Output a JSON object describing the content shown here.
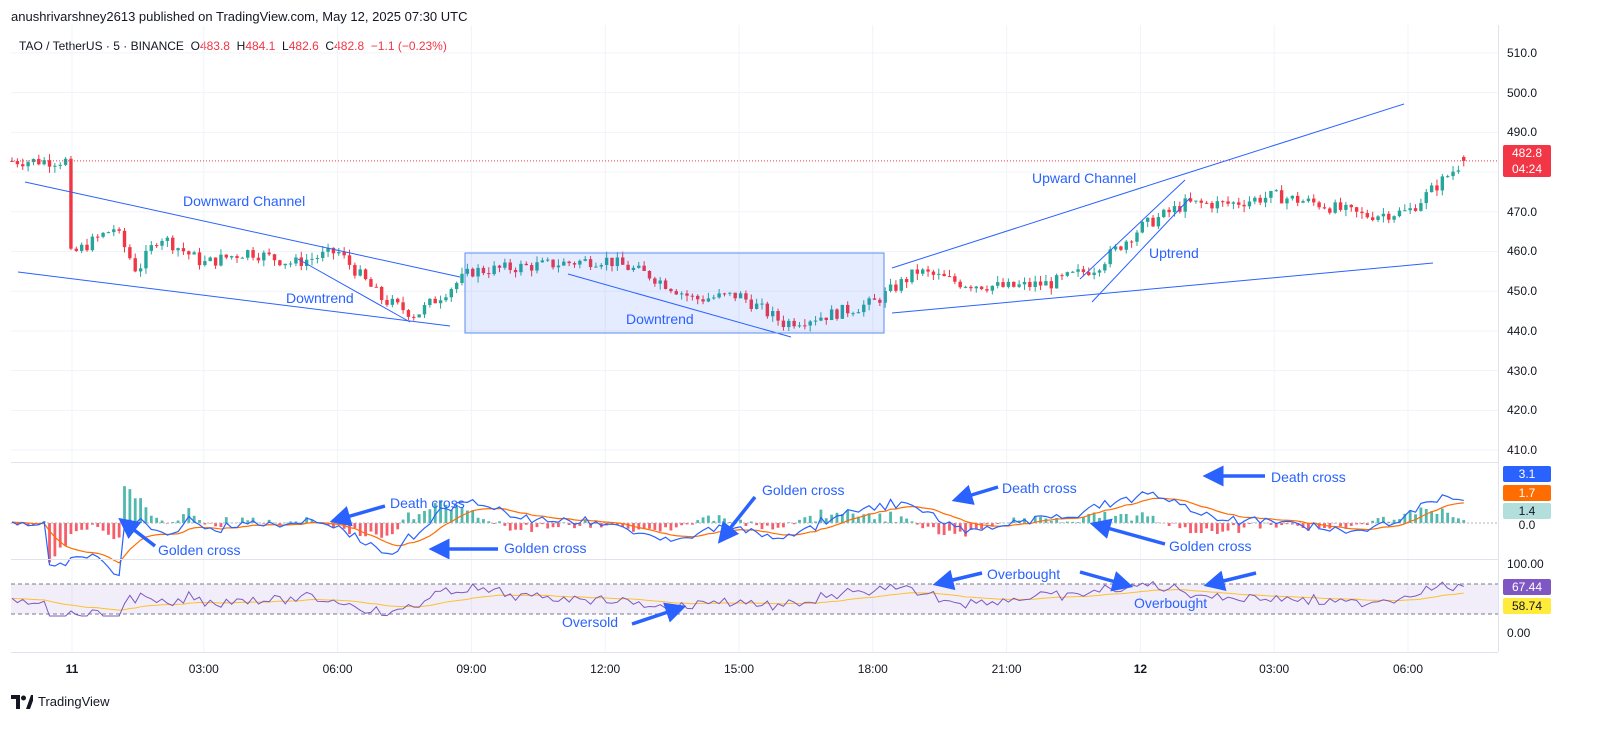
{
  "header": {
    "publisher_line": "anushrivarshney2613 published on TradingView.com, May 12, 2025 07:30 UTC"
  },
  "symbol": {
    "name": "TAO / TetherUS · 5 · BINANCE",
    "o_label": "O",
    "o_value": "483.8",
    "h_label": "H",
    "h_value": "484.1",
    "l_label": "L",
    "l_value": "482.6",
    "c_label": "C",
    "c_value": "482.8",
    "change": "−1.1 (−0.23%)"
  },
  "price_tag": {
    "value": "482.8",
    "timer": "04:24",
    "color": "#f23645"
  },
  "macd_tags": [
    {
      "value": "3.1",
      "color": "#2962ff",
      "text": "#ffffff"
    },
    {
      "value": "1.7",
      "color": "#ff6d00",
      "text": "#ffffff"
    },
    {
      "value": "1.4",
      "color": "#b2dfdb",
      "text": "#131722"
    },
    {
      "value": "0.0",
      "color": "",
      "text": "#131722"
    }
  ],
  "rsi_tags": [
    {
      "value": "67.44",
      "color": "#7e57c2",
      "text": "#ffffff"
    },
    {
      "value": "58.74",
      "color": "#ffeb3b",
      "text": "#131722"
    }
  ],
  "rsi_axis": [
    "100.00",
    "0.00"
  ],
  "footer": {
    "brand": "TradingView"
  },
  "annotations": {
    "downward_channel": "Downward Channel",
    "downtrend_1": "Downtrend",
    "downtrend_2": "Downtrend",
    "upward_channel": "Upward Channel",
    "uptrend": "Uptrend",
    "death_cross_1": "Death cross",
    "death_cross_2": "Death cross",
    "death_cross_3": "Death cross",
    "golden_cross_1": "Golden cross",
    "golden_cross_2": "Golden cross",
    "golden_cross_3": "Golden cross",
    "golden_cross_4": "Golden cross",
    "overbought_1": "Overbought",
    "overbought_2": "Overbought",
    "oversold": "Oversold"
  },
  "colors": {
    "up": "#26a69a",
    "down": "#f23645",
    "line": "#2962ff",
    "signal": "#ff6d00",
    "rsi": "#7e57c2",
    "rsi_ma": "#ffeb3b"
  },
  "chart_data": {
    "type": "candlestick",
    "title": "TAO / TetherUS · 5 · BINANCE",
    "y_ticks": [
      510,
      500,
      490,
      480,
      470,
      460,
      450,
      440,
      430,
      420,
      410
    ],
    "ylim": [
      408,
      513
    ],
    "x_ticks": [
      "11",
      "03:00",
      "06:00",
      "09:00",
      "12:00",
      "15:00",
      "18:00",
      "21:00",
      "12",
      "03:00",
      "06:00"
    ],
    "last_price": 482.8,
    "price_path": [
      {
        "t": "00:00",
        "p": 459
      },
      {
        "t": "01:00",
        "p": 466
      },
      {
        "t": "01:30",
        "p": 455
      },
      {
        "t": "02:00",
        "p": 464
      },
      {
        "t": "03:00",
        "p": 457
      },
      {
        "t": "04:00",
        "p": 460
      },
      {
        "t": "05:00",
        "p": 457
      },
      {
        "t": "06:00",
        "p": 460
      },
      {
        "t": "07:00",
        "p": 448
      },
      {
        "t": "07:45",
        "p": 444
      },
      {
        "t": "09:00",
        "p": 455
      },
      {
        "t": "10:00",
        "p": 456
      },
      {
        "t": "11:00",
        "p": 457
      },
      {
        "t": "12:00",
        "p": 458
      },
      {
        "t": "13:00",
        "p": 454
      },
      {
        "t": "14:00",
        "p": 448
      },
      {
        "t": "15:00",
        "p": 449
      },
      {
        "t": "16:00",
        "p": 442
      },
      {
        "t": "17:00",
        "p": 444
      },
      {
        "t": "18:00",
        "p": 447
      },
      {
        "t": "19:00",
        "p": 455
      },
      {
        "t": "20:00",
        "p": 452
      },
      {
        "t": "21:00",
        "p": 451
      },
      {
        "t": "22:00",
        "p": 452
      },
      {
        "t": "23:00",
        "p": 456
      },
      {
        "t": "00:00+1",
        "p": 466
      },
      {
        "t": "01:00+1",
        "p": 472
      },
      {
        "t": "02:00+1",
        "p": 472
      },
      {
        "t": "03:00+1",
        "p": 474
      },
      {
        "t": "04:00+1",
        "p": 472
      },
      {
        "t": "05:00+1",
        "p": 469
      },
      {
        "t": "06:00+1",
        "p": 470
      },
      {
        "t": "07:15+1",
        "p": 482.8
      }
    ],
    "macd_ticks": [
      "3.1",
      "1.7",
      "1.4",
      "0.0"
    ],
    "rsi_levels": {
      "upper": 70,
      "lower": 30
    },
    "rsi_last": 67.44,
    "rsi_ma_last": 58.74
  }
}
